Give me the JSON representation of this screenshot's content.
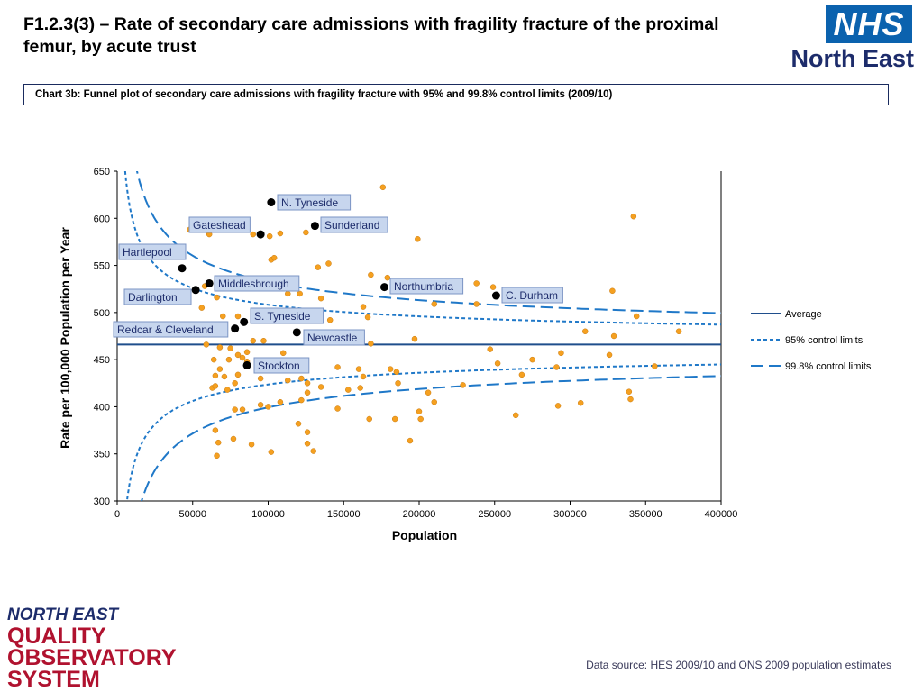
{
  "header": {
    "title": "F1.2.3(3) – Rate of secondary care admissions with fragility fracture of the proximal femur, by acute trust",
    "chart_caption": "Chart 3b: Funnel plot of secondary care admissions with fragility fracture with 95% and 99.8% control limits (2009/10)"
  },
  "logos": {
    "nhs": "NHS",
    "nhs_region": "North East",
    "neqos": [
      "NORTH EAST",
      "QUALITY",
      "OBSERVATORY",
      "SYSTEM"
    ]
  },
  "footer": {
    "source": "Data source: HES 2009/10 and ONS 2009 population estimates"
  },
  "colors": {
    "average": "#1f4e8c",
    "limits": "#1f78c8",
    "points": "#f5a020",
    "highlight": "#000000",
    "label_fill": "#c7d6ee"
  },
  "chart_data": {
    "type": "scatter",
    "title": "",
    "xlabel": "Population",
    "ylabel": "Rate per 100,000 Population per Year",
    "xlim": [
      0,
      400000
    ],
    "ylim": [
      300,
      650
    ],
    "xticks": [
      "0",
      "50000",
      "100000",
      "150000",
      "200000",
      "250000",
      "300000",
      "350000",
      "400000"
    ],
    "yticks": [
      "300",
      "350",
      "400",
      "450",
      "500",
      "550",
      "600",
      "650"
    ],
    "average": 466,
    "legend": [
      "Average",
      "95% control limits",
      "99.8% control limits"
    ],
    "legend_position": "right",
    "highlighted": [
      {
        "name": "N. Tyneside",
        "x": 102000,
        "y": 617
      },
      {
        "name": "Gateshead",
        "x": 95000,
        "y": 583
      },
      {
        "name": "Sunderland",
        "x": 131000,
        "y": 592
      },
      {
        "name": "Hartlepool",
        "x": 43000,
        "y": 547
      },
      {
        "name": "Middlesbrough",
        "x": 61000,
        "y": 531
      },
      {
        "name": "Darlington",
        "x": 52000,
        "y": 524
      },
      {
        "name": "Northumbria",
        "x": 177000,
        "y": 527
      },
      {
        "name": "C. Durham",
        "x": 251000,
        "y": 518
      },
      {
        "name": "S. Tyneside",
        "x": 84000,
        "y": 490
      },
      {
        "name": "Redcar & Cleveland",
        "x": 78000,
        "y": 483
      },
      {
        "name": "Newcastle",
        "x": 119000,
        "y": 479
      },
      {
        "name": "Stockton",
        "x": 86000,
        "y": 444
      }
    ],
    "other_trusts": [
      [
        176000,
        633
      ],
      [
        342000,
        602
      ],
      [
        48000,
        588
      ],
      [
        61000,
        583
      ],
      [
        90000,
        583
      ],
      [
        108000,
        584
      ],
      [
        125000,
        585
      ],
      [
        101000,
        581
      ],
      [
        199000,
        578
      ],
      [
        102000,
        556
      ],
      [
        104000,
        558
      ],
      [
        140000,
        552
      ],
      [
        133000,
        548
      ],
      [
        168000,
        540
      ],
      [
        179000,
        537
      ],
      [
        238000,
        531
      ],
      [
        58000,
        528
      ],
      [
        328000,
        523
      ],
      [
        113000,
        520
      ],
      [
        121000,
        520
      ],
      [
        66000,
        516
      ],
      [
        135000,
        515
      ],
      [
        56000,
        505
      ],
      [
        210000,
        509
      ],
      [
        238000,
        509
      ],
      [
        249000,
        527
      ],
      [
        262000,
        516
      ],
      [
        163000,
        506
      ],
      [
        70000,
        496
      ],
      [
        80000,
        496
      ],
      [
        108000,
        494
      ],
      [
        119000,
        496
      ],
      [
        141000,
        492
      ],
      [
        166000,
        495
      ],
      [
        344000,
        496
      ],
      [
        310000,
        480
      ],
      [
        372000,
        480
      ],
      [
        329000,
        475
      ],
      [
        97000,
        470
      ],
      [
        157000,
        468
      ],
      [
        197000,
        472
      ],
      [
        168000,
        467
      ],
      [
        59000,
        466
      ],
      [
        68000,
        463
      ],
      [
        75000,
        462
      ],
      [
        86000,
        458
      ],
      [
        90000,
        470
      ],
      [
        80000,
        455
      ],
      [
        83000,
        452
      ],
      [
        64000,
        450
      ],
      [
        74000,
        450
      ],
      [
        86000,
        448
      ],
      [
        110000,
        457
      ],
      [
        247000,
        461
      ],
      [
        252000,
        446
      ],
      [
        275000,
        450
      ],
      [
        294000,
        457
      ],
      [
        291000,
        442
      ],
      [
        326000,
        455
      ],
      [
        356000,
        443
      ],
      [
        65000,
        433
      ],
      [
        68000,
        440
      ],
      [
        71000,
        432
      ],
      [
        80000,
        434
      ],
      [
        95000,
        430
      ],
      [
        113000,
        428
      ],
      [
        122000,
        430
      ],
      [
        126000,
        425
      ],
      [
        146000,
        442
      ],
      [
        160000,
        440
      ],
      [
        163000,
        432
      ],
      [
        181000,
        440
      ],
      [
        185000,
        437
      ],
      [
        186000,
        425
      ],
      [
        63000,
        420
      ],
      [
        65000,
        422
      ],
      [
        73000,
        418
      ],
      [
        78000,
        425
      ],
      [
        126000,
        415
      ],
      [
        135000,
        421
      ],
      [
        153000,
        418
      ],
      [
        161000,
        420
      ],
      [
        206000,
        415
      ],
      [
        210000,
        405
      ],
      [
        229000,
        423
      ],
      [
        268000,
        434
      ],
      [
        339000,
        416
      ],
      [
        340000,
        408
      ],
      [
        78000,
        397
      ],
      [
        83000,
        397
      ],
      [
        95000,
        402
      ],
      [
        100000,
        400
      ],
      [
        108000,
        405
      ],
      [
        122000,
        407
      ],
      [
        146000,
        398
      ],
      [
        200000,
        395
      ],
      [
        201000,
        387
      ],
      [
        167000,
        387
      ],
      [
        184000,
        387
      ],
      [
        264000,
        391
      ],
      [
        292000,
        401
      ],
      [
        307000,
        404
      ],
      [
        65000,
        375
      ],
      [
        67000,
        362
      ],
      [
        77000,
        366
      ],
      [
        89000,
        360
      ],
      [
        102000,
        352
      ],
      [
        120000,
        382
      ],
      [
        126000,
        373
      ],
      [
        126000,
        361
      ],
      [
        130000,
        353
      ],
      [
        194000,
        364
      ],
      [
        66000,
        348
      ]
    ]
  }
}
